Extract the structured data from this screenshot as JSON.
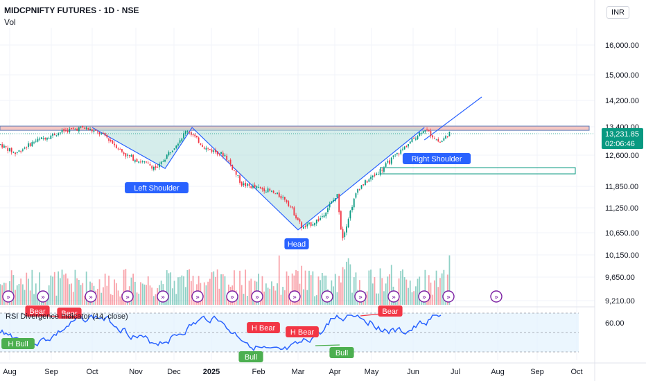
{
  "header": {
    "title": "MIDCPNIFTY FUTURES · 1D · NSE",
    "volume_label": "Vol",
    "currency": "INR"
  },
  "price_badge": {
    "price": "13,231.85",
    "countdown": "02:06:46",
    "color": "#089981"
  },
  "rsi_panel": {
    "title": "RSI Divergence Indicator (14, close)",
    "level_label": "60.00"
  },
  "pattern_labels": {
    "left_shoulder": "Left Shoulder",
    "head": "Head",
    "right_shoulder": "Right Shoulder"
  },
  "divergence_labels": [
    "Bear",
    "Bear",
    "H Bull",
    "H Bear",
    "H Bear",
    "Bull",
    "Bull",
    "Bear"
  ],
  "colors": {
    "up": "#089981",
    "down": "#f23645",
    "pattern_line": "#2962ff",
    "pattern_fill": "#b2dfdb",
    "neckline_zone": "#f4c7c3",
    "rsi_line": "#2962ff",
    "rsi_band": "#e3f2fd",
    "label_blue": "#2962ff",
    "label_red": "#f23645",
    "label_green": "#4caf50",
    "event_icon": "#7b1fa2"
  },
  "chart_data": {
    "type": "candlestick",
    "title": "MIDCPNIFTY FUTURES · 1D · NSE",
    "y_ticks": [
      "16,000.00",
      "15,000.00",
      "14,200.00",
      "13,400.00",
      "12,600.00",
      "11,850.00",
      "11,250.00",
      "10,650.00",
      "10,150.00",
      "9,650.00",
      "9,210.00"
    ],
    "x_ticks": [
      "Aug",
      "Sep",
      "Oct",
      "Nov",
      "Dec",
      "2025",
      "Feb",
      "Mar",
      "Apr",
      "May",
      "Jun",
      "Jul",
      "Aug",
      "Sep",
      "Oct"
    ],
    "ylim": [
      9150,
      16500
    ],
    "close_path": [
      {
        "date": "2024-07-25",
        "close": 12900
      },
      {
        "date": "2024-08-05",
        "close": 12650
      },
      {
        "date": "2024-08-20",
        "close": 13000
      },
      {
        "date": "2024-09-10",
        "close": 13280
      },
      {
        "date": "2024-09-25",
        "close": 13380
      },
      {
        "date": "2024-10-10",
        "close": 13150
      },
      {
        "date": "2024-10-25",
        "close": 12600
      },
      {
        "date": "2024-11-18",
        "close": 12280
      },
      {
        "date": "2024-12-05",
        "close": 13000
      },
      {
        "date": "2024-12-12",
        "close": 13320
      },
      {
        "date": "2024-12-27",
        "close": 12800
      },
      {
        "date": "2025-01-10",
        "close": 12600
      },
      {
        "date": "2025-01-21",
        "close": 11900
      },
      {
        "date": "2025-02-07",
        "close": 11750
      },
      {
        "date": "2025-02-20",
        "close": 11500
      },
      {
        "date": "2025-03-05",
        "close": 10750
      },
      {
        "date": "2025-03-20",
        "close": 11000
      },
      {
        "date": "2025-04-03",
        "close": 11600
      },
      {
        "date": "2025-04-07",
        "close": 10500
      },
      {
        "date": "2025-04-20",
        "close": 11800
      },
      {
        "date": "2025-05-10",
        "close": 12300
      },
      {
        "date": "2025-05-25",
        "close": 12800
      },
      {
        "date": "2025-06-09",
        "close": 13350
      },
      {
        "date": "2025-06-20",
        "close": 12950
      },
      {
        "date": "2025-06-27",
        "close": 13231.85
      }
    ],
    "neckline_zone": [
      13300,
      13420
    ],
    "target_box": [
      12150,
      12300
    ],
    "series": [
      {
        "name": "RSI Divergence Indicator (14, close)",
        "type": "line"
      }
    ]
  }
}
